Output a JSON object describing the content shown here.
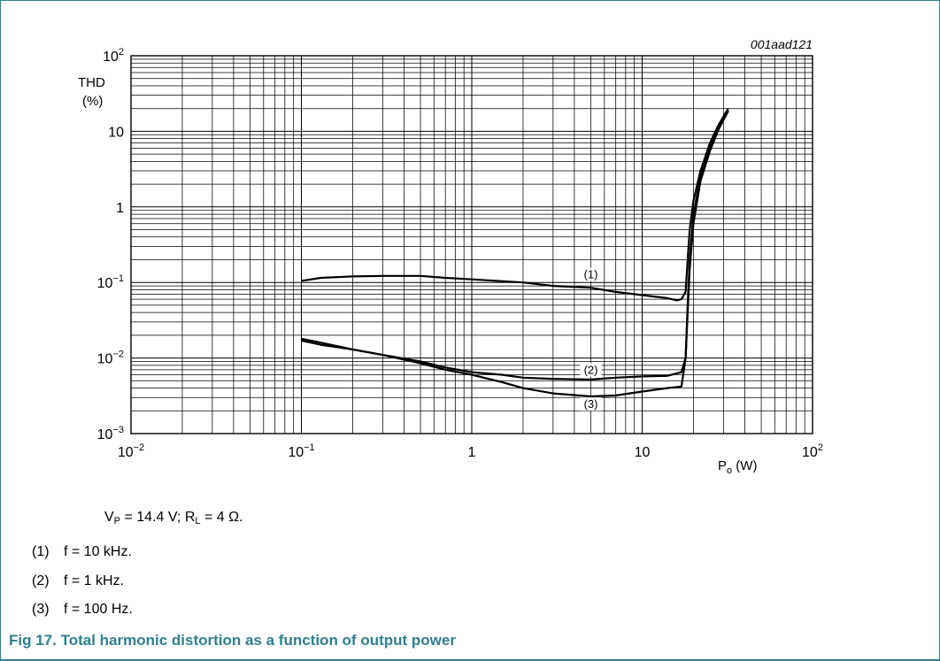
{
  "chart_data": {
    "type": "line",
    "chart_code": "001aad121",
    "ylabel_line1": "THD",
    "ylabel_line2": "(%)",
    "xlabel_main": "P",
    "xlabel_sub": "o",
    "xlabel_unit": " (W)",
    "x_scale": "log",
    "y_scale": "log",
    "xlim": [
      0.01,
      100
    ],
    "ylim": [
      0.001,
      100
    ],
    "grid": true,
    "x_ticks": [
      {
        "value": 0.01,
        "base": "10",
        "exp": "−2"
      },
      {
        "value": 0.1,
        "base": "10",
        "exp": "−1"
      },
      {
        "value": 1,
        "base": "1",
        "exp": ""
      },
      {
        "value": 10,
        "base": "10",
        "exp": ""
      },
      {
        "value": 100,
        "base": "10",
        "exp": "2"
      }
    ],
    "y_ticks": [
      {
        "value": 100,
        "base": "10",
        "exp": "2"
      },
      {
        "value": 10,
        "base": "10",
        "exp": ""
      },
      {
        "value": 1,
        "base": "1",
        "exp": ""
      },
      {
        "value": 0.1,
        "base": "10",
        "exp": "−1"
      },
      {
        "value": 0.01,
        "base": "10",
        "exp": "−2"
      },
      {
        "value": 0.001,
        "base": "10",
        "exp": "−3"
      }
    ],
    "series": [
      {
        "name": "(1)",
        "label_at": [
          5,
          0.12
        ],
        "points": [
          [
            0.1,
            0.105
          ],
          [
            0.13,
            0.115
          ],
          [
            0.2,
            0.12
          ],
          [
            0.3,
            0.122
          ],
          [
            0.5,
            0.122
          ],
          [
            0.7,
            0.115
          ],
          [
            1,
            0.11
          ],
          [
            2,
            0.1
          ],
          [
            3,
            0.09
          ],
          [
            5,
            0.085
          ],
          [
            7,
            0.075
          ],
          [
            10,
            0.068
          ],
          [
            14,
            0.062
          ],
          [
            16,
            0.058
          ],
          [
            17,
            0.06
          ],
          [
            18,
            0.075
          ],
          [
            18.5,
            0.2
          ],
          [
            19,
            0.5
          ],
          [
            20,
            1.2
          ],
          [
            22,
            3
          ],
          [
            25,
            7
          ],
          [
            28,
            12
          ],
          [
            32,
            20
          ]
        ]
      },
      {
        "name": "(2)",
        "label_at": [
          5,
          0.0065
        ],
        "points": [
          [
            0.1,
            0.018
          ],
          [
            0.13,
            0.016
          ],
          [
            0.2,
            0.013
          ],
          [
            0.3,
            0.011
          ],
          [
            0.5,
            0.009
          ],
          [
            0.7,
            0.0075
          ],
          [
            1,
            0.0065
          ],
          [
            1.5,
            0.006
          ],
          [
            2,
            0.0055
          ],
          [
            3,
            0.0053
          ],
          [
            5,
            0.0052
          ],
          [
            7,
            0.0055
          ],
          [
            10,
            0.0057
          ],
          [
            14,
            0.0058
          ],
          [
            17,
            0.0065
          ],
          [
            18,
            0.01
          ],
          [
            18.5,
            0.05
          ],
          [
            19,
            0.2
          ],
          [
            20,
            0.8
          ],
          [
            22,
            2.5
          ],
          [
            25,
            6
          ],
          [
            28,
            11
          ],
          [
            32,
            19
          ]
        ]
      },
      {
        "name": "(3)",
        "label_at": [
          5,
          0.0023
        ],
        "points": [
          [
            0.1,
            0.017
          ],
          [
            0.13,
            0.015
          ],
          [
            0.2,
            0.013
          ],
          [
            0.3,
            0.011
          ],
          [
            0.5,
            0.0085
          ],
          [
            0.7,
            0.007
          ],
          [
            1,
            0.006
          ],
          [
            1.5,
            0.0048
          ],
          [
            2,
            0.004
          ],
          [
            3,
            0.0034
          ],
          [
            5,
            0.0031
          ],
          [
            7,
            0.0032
          ],
          [
            10,
            0.0036
          ],
          [
            14,
            0.004
          ],
          [
            17,
            0.0042
          ],
          [
            18,
            0.01
          ],
          [
            18.5,
            0.04
          ],
          [
            19,
            0.15
          ],
          [
            20,
            0.6
          ],
          [
            22,
            2.2
          ],
          [
            25,
            5.5
          ],
          [
            28,
            10.5
          ],
          [
            32,
            18.5
          ]
        ]
      }
    ]
  },
  "conditions": {
    "vp_main": "V",
    "vp_sub": "P",
    "vp_val": " = 14.4 V; ",
    "rl_main": "R",
    "rl_sub": "L",
    "rl_val": " = 4 Ω."
  },
  "notes": [
    {
      "num": "(1)",
      "text": "f = 10 kHz."
    },
    {
      "num": "(2)",
      "text": "f = 1 kHz."
    },
    {
      "num": "(3)",
      "text": "f = 100 Hz."
    }
  ],
  "caption": "Fig 17. Total harmonic distortion as a function of output power"
}
